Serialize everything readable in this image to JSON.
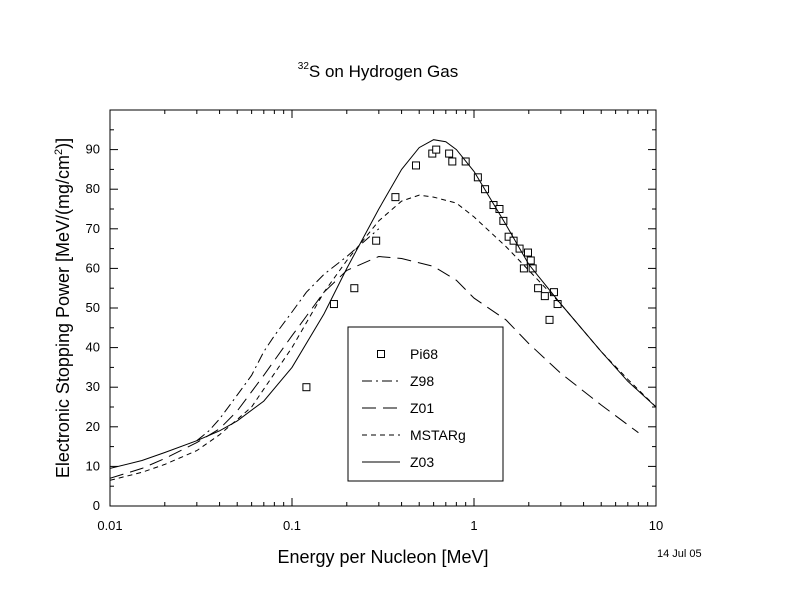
{
  "chart_data": {
    "type": "line",
    "title": {
      "superscript": "32",
      "text": "S on Hydrogen Gas"
    },
    "xlabel": "Energy per Nucleon [MeV]",
    "ylabel": {
      "before": "Electronic Stopping Power [MeV/(mg/cm",
      "superscript": "2",
      "after": ")]"
    },
    "x_scale": "log",
    "xlim": [
      0.01,
      10
    ],
    "ylim": [
      0,
      100
    ],
    "x_ticks": [
      {
        "value": 0.01,
        "label": "0.01"
      },
      {
        "value": 0.1,
        "label": "0.1"
      },
      {
        "value": 1,
        "label": "1"
      },
      {
        "value": 10,
        "label": "10"
      }
    ],
    "y_ticks": [
      {
        "value": 0,
        "label": "0"
      },
      {
        "value": 10,
        "label": "10"
      },
      {
        "value": 20,
        "label": "20"
      },
      {
        "value": 30,
        "label": "30"
      },
      {
        "value": 40,
        "label": "40"
      },
      {
        "value": 50,
        "label": "50"
      },
      {
        "value": 60,
        "label": "60"
      },
      {
        "value": 70,
        "label": "70"
      },
      {
        "value": 80,
        "label": "80"
      },
      {
        "value": 90,
        "label": "90"
      }
    ],
    "grid": false,
    "legend_position": "lower-center",
    "date_stamp": "14 Jul 05",
    "series": [
      {
        "name": "Pi68",
        "style": "open-square",
        "points": [
          [
            0.12,
            30
          ],
          [
            0.17,
            51
          ],
          [
            0.22,
            55
          ],
          [
            0.29,
            67
          ],
          [
            0.37,
            78
          ],
          [
            0.48,
            86
          ],
          [
            0.59,
            89
          ],
          [
            0.62,
            90
          ],
          [
            0.73,
            89
          ],
          [
            0.76,
            87
          ],
          [
            0.9,
            87
          ],
          [
            1.05,
            83
          ],
          [
            1.15,
            80
          ],
          [
            1.28,
            76
          ],
          [
            1.38,
            75
          ],
          [
            1.45,
            72
          ],
          [
            1.55,
            68
          ],
          [
            1.65,
            67
          ],
          [
            1.78,
            65
          ],
          [
            1.88,
            60
          ],
          [
            1.98,
            64
          ],
          [
            2.05,
            62
          ],
          [
            2.1,
            60
          ],
          [
            2.25,
            55
          ],
          [
            2.45,
            53
          ],
          [
            2.6,
            47
          ],
          [
            2.75,
            54
          ],
          [
            2.88,
            51
          ]
        ]
      },
      {
        "name": "Z98",
        "style": "dash-dot",
        "points": [
          [
            0.03,
            16.5
          ],
          [
            0.035,
            19
          ],
          [
            0.04,
            22
          ],
          [
            0.05,
            28
          ],
          [
            0.06,
            33
          ],
          [
            0.07,
            39
          ],
          [
            0.08,
            43
          ],
          [
            0.1,
            49
          ],
          [
            0.12,
            54
          ],
          [
            0.15,
            58.5
          ],
          [
            0.2,
            63
          ],
          [
            0.3,
            70
          ]
        ]
      },
      {
        "name": "Z01",
        "style": "long-dash",
        "points": [
          [
            0.01,
            7
          ],
          [
            0.015,
            9.5
          ],
          [
            0.02,
            12
          ],
          [
            0.03,
            16
          ],
          [
            0.04,
            19.5
          ],
          [
            0.05,
            24
          ],
          [
            0.07,
            33
          ],
          [
            0.1,
            43
          ],
          [
            0.15,
            54
          ],
          [
            0.2,
            59.5
          ],
          [
            0.3,
            63
          ],
          [
            0.4,
            62.5
          ],
          [
            0.6,
            60.5
          ],
          [
            0.8,
            57
          ],
          [
            1,
            52.5
          ],
          [
            1.5,
            47
          ],
          [
            2,
            41
          ],
          [
            3,
            33.5
          ],
          [
            5,
            25.5
          ],
          [
            8,
            18.5
          ]
        ]
      },
      {
        "name": "MSTARg",
        "style": "short-dash",
        "points": [
          [
            0.01,
            6.5
          ],
          [
            0.015,
            8.5
          ],
          [
            0.02,
            10.5
          ],
          [
            0.03,
            14
          ],
          [
            0.04,
            18
          ],
          [
            0.06,
            25
          ],
          [
            0.1,
            40
          ],
          [
            0.15,
            54
          ],
          [
            0.2,
            62
          ],
          [
            0.3,
            72
          ],
          [
            0.4,
            77
          ],
          [
            0.5,
            78.5
          ],
          [
            0.6,
            78
          ],
          [
            0.8,
            76.5
          ],
          [
            1,
            73
          ],
          [
            1.5,
            65.5
          ],
          [
            2,
            59.5
          ],
          [
            3,
            51
          ],
          [
            5,
            39
          ],
          [
            7,
            32
          ],
          [
            10,
            25
          ]
        ]
      },
      {
        "name": "Z03",
        "style": "solid",
        "points": [
          [
            0.01,
            9.5
          ],
          [
            0.015,
            11.5
          ],
          [
            0.02,
            13.5
          ],
          [
            0.03,
            16.5
          ],
          [
            0.04,
            19
          ],
          [
            0.05,
            21.5
          ],
          [
            0.07,
            26.5
          ],
          [
            0.1,
            35
          ],
          [
            0.15,
            48.5
          ],
          [
            0.2,
            60
          ],
          [
            0.3,
            75
          ],
          [
            0.4,
            85
          ],
          [
            0.5,
            90.5
          ],
          [
            0.6,
            92.5
          ],
          [
            0.7,
            92
          ],
          [
            0.8,
            90
          ],
          [
            1,
            84.5
          ],
          [
            1.5,
            71
          ],
          [
            2,
            61
          ],
          [
            3,
            51
          ],
          [
            5,
            39
          ],
          [
            7,
            31.5
          ],
          [
            10,
            25
          ]
        ]
      }
    ]
  }
}
